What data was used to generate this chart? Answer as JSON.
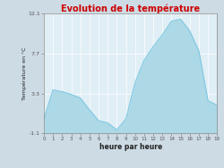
{
  "title": "Evolution de la température",
  "title_color": "#cc0000",
  "xlabel": "heure par heure",
  "ylabel": "Température en °C",
  "background_color": "#cddbe5",
  "plot_bg_color": "#e0eef5",
  "ylim": [
    -1.1,
    12.1
  ],
  "yticks": [
    -1.1,
    3.3,
    7.7,
    12.1
  ],
  "ytick_labels": [
    "-1.1",
    "3.3",
    "7.7",
    "12.1"
  ],
  "xlim": [
    0,
    19
  ],
  "xticks": [
    0,
    1,
    2,
    3,
    4,
    5,
    6,
    7,
    8,
    9,
    10,
    11,
    12,
    13,
    14,
    15,
    16,
    17,
    18,
    19
  ],
  "xtick_labels": [
    "0",
    "1",
    "2",
    "3",
    "4",
    "5",
    "6",
    "7",
    "8",
    "9",
    "10",
    "11",
    "12",
    "13",
    "14",
    "15",
    "16",
    "17",
    "18",
    "19"
  ],
  "hours": [
    0,
    1,
    2,
    3,
    4,
    5,
    6,
    7,
    8,
    9,
    10,
    11,
    12,
    13,
    14,
    15,
    16,
    17,
    18,
    19
  ],
  "temps": [
    0.5,
    3.7,
    3.5,
    3.2,
    2.8,
    1.5,
    0.3,
    0.05,
    -0.7,
    0.5,
    4.5,
    7.0,
    8.5,
    9.8,
    11.3,
    11.5,
    10.2,
    8.0,
    2.5,
    2.0
  ],
  "fill_color": "#add8e6",
  "line_color": "#7ec8e3",
  "line_width": 0.8,
  "grid_color": "#ffffff",
  "spine_color": "#888888",
  "tick_color": "#555555",
  "title_fontsize": 7,
  "xlabel_fontsize": 5.5,
  "ylabel_fontsize": 4.5,
  "xtick_fontsize": 4,
  "ytick_fontsize": 4.5
}
